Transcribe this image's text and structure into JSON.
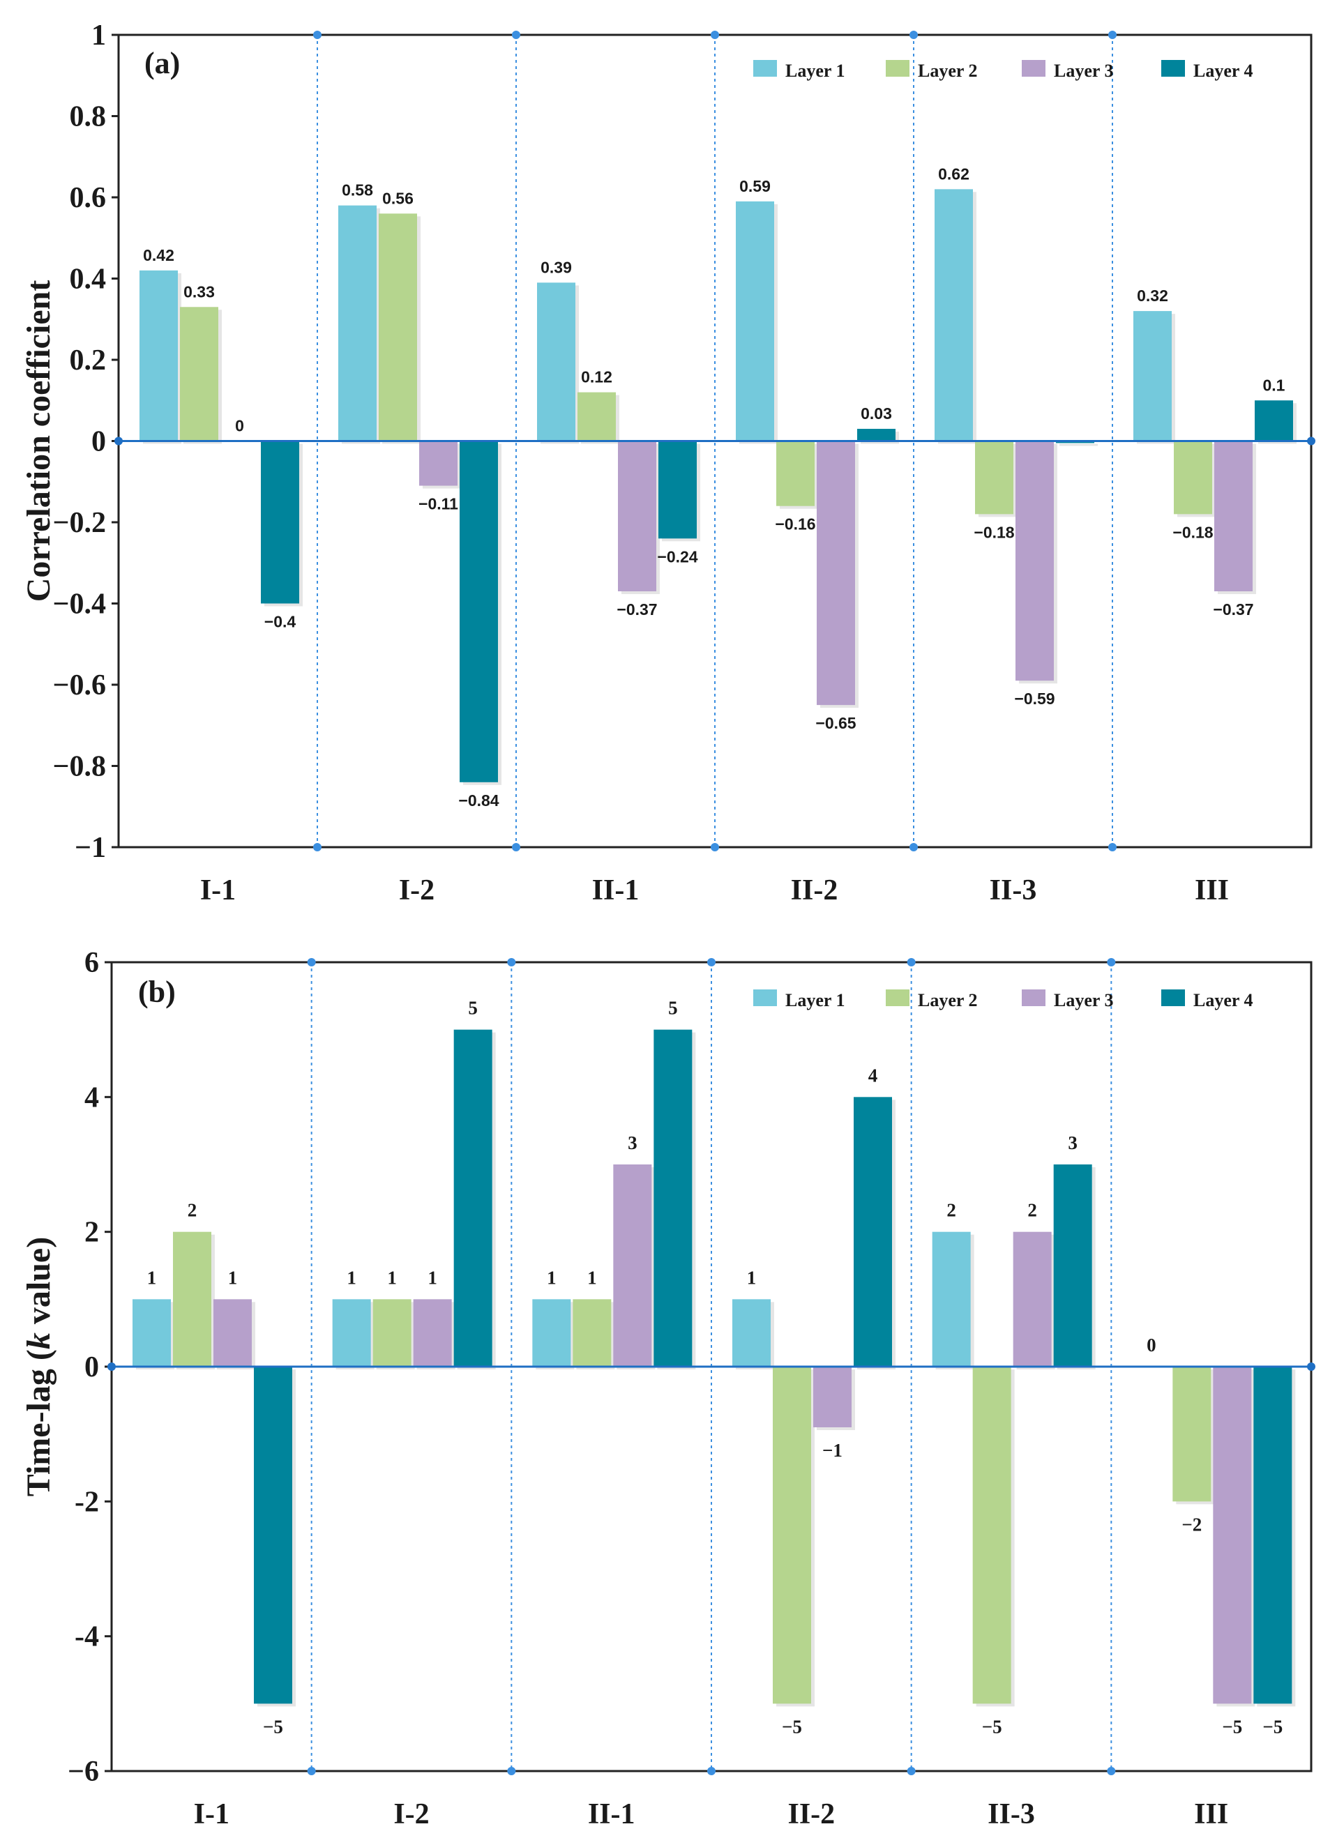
{
  "colors": {
    "series": [
      "#74c9dc",
      "#b5d58e",
      "#b6a0cb",
      "#00849b"
    ],
    "zero_line": "#1f6fc4",
    "separator": "#3b8fe0",
    "axis": "#222222"
  },
  "chart_data": [
    {
      "type": "bar",
      "panel_label": "(a)",
      "title": "",
      "xlabel": "",
      "ylabel": "Correlation coefficient",
      "ylim": [
        -1,
        1
      ],
      "yticks": [
        1,
        0.8,
        0.6,
        0.4,
        0.2,
        0,
        -0.2,
        -0.4,
        -0.6,
        -0.8,
        -1
      ],
      "ytick_labels": [
        "1",
        "0.8",
        "0.6",
        "0.4",
        "0.2",
        "0",
        "−0.2",
        "−0.4",
        "−0.6",
        "−0.8",
        "−1"
      ],
      "categories": [
        "I-1",
        "I-2",
        "II-1",
        "II-2",
        "II-3",
        "III"
      ],
      "legend": {
        "position": "top-right"
      },
      "series": [
        {
          "name": "Layer 1",
          "values": [
            0.42,
            0.58,
            0.39,
            0.59,
            0.62,
            0.32
          ],
          "labels": [
            "0.42",
            "0.58",
            "0.39",
            "0.59",
            "0.62",
            "0.32"
          ]
        },
        {
          "name": "Layer 2",
          "values": [
            0.33,
            0.56,
            0.12,
            -0.16,
            -0.18,
            -0.18
          ],
          "labels": [
            "0.33",
            "0.56",
            "0.12",
            "−0.16",
            "−0.18",
            "−0.18"
          ]
        },
        {
          "name": "Layer 3",
          "values": [
            0,
            -0.11,
            -0.37,
            -0.65,
            -0.59,
            -0.37
          ],
          "labels": [
            "0",
            "−0.11",
            "−0.37",
            "−0.65",
            "−0.59",
            "−0.37"
          ]
        },
        {
          "name": "Layer 4",
          "values": [
            -0.4,
            -0.84,
            -0.24,
            0.03,
            -0.005,
            0.1
          ],
          "labels": [
            "−0.4",
            "−0.84",
            "−0.24",
            "0.03",
            "",
            "0.1"
          ]
        }
      ]
    },
    {
      "type": "bar",
      "panel_label": "(b)",
      "title": "",
      "xlabel": "",
      "ylabel_prefix": "Time-lag (",
      "ylabel_italic": "k",
      "ylabel_suffix": " value)",
      "ylim": [
        -6,
        6
      ],
      "yticks": [
        6,
        4,
        2,
        0,
        -2,
        -4,
        -6
      ],
      "ytick_labels": [
        "6",
        "4",
        "2",
        "0",
        "-2",
        "-4",
        "−6"
      ],
      "categories": [
        "I-1",
        "I-2",
        "II-1",
        "II-2",
        "II-3",
        "III"
      ],
      "legend": {
        "position": "top-right"
      },
      "series": [
        {
          "name": "Layer 1",
          "values": [
            1,
            1,
            1,
            1,
            2,
            0
          ],
          "labels": [
            "1",
            "1",
            "1",
            "1",
            "2",
            "0"
          ]
        },
        {
          "name": "Layer 2",
          "values": [
            2,
            1,
            1,
            -5,
            -5,
            -2
          ],
          "labels": [
            "2",
            "1",
            "1",
            "−5",
            "−5",
            "−2"
          ]
        },
        {
          "name": "Layer 3",
          "values": [
            1,
            1,
            3,
            -0.9,
            2,
            -5
          ],
          "labels": [
            "1",
            "1",
            "3",
            "−1",
            "2",
            "−5"
          ]
        },
        {
          "name": "Layer 4",
          "values": [
            -5,
            5,
            5,
            4,
            3,
            -5
          ],
          "labels": [
            "−5",
            "5",
            "5",
            "4",
            "3",
            "−5"
          ]
        }
      ]
    }
  ]
}
